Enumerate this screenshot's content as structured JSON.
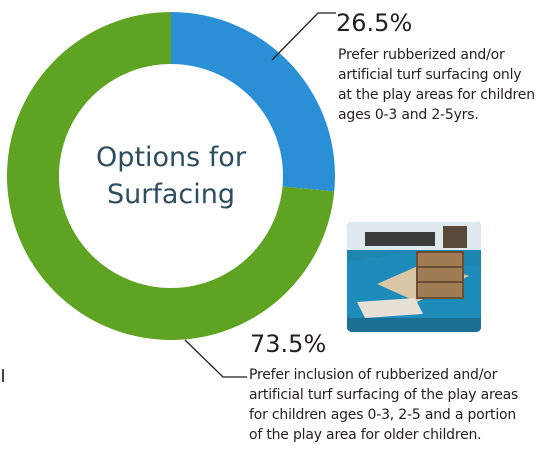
{
  "chart_data": {
    "type": "pie",
    "style": "donut",
    "title_lines": [
      "Options for",
      "Surfacing"
    ],
    "slices": [
      {
        "value": 26.5,
        "label": "26.5%",
        "color": "#2b8fd6",
        "description_lines": [
          "Prefer rubberized and/or",
          "artificial turf surfacing only",
          "at the play areas for children",
          "ages 0-3 and 2-5yrs."
        ]
      },
      {
        "value": 73.5,
        "label": "73.5%",
        "color": "#5fa322",
        "description_lines": [
          "Prefer inclusion of rubberized and/or",
          "artificial turf surfacing of the play areas",
          "for children ages 0-3, 2-5 and a portion",
          "of the play area for older children."
        ]
      }
    ]
  },
  "photo": {
    "icon": "playground-sandbox-photo"
  }
}
